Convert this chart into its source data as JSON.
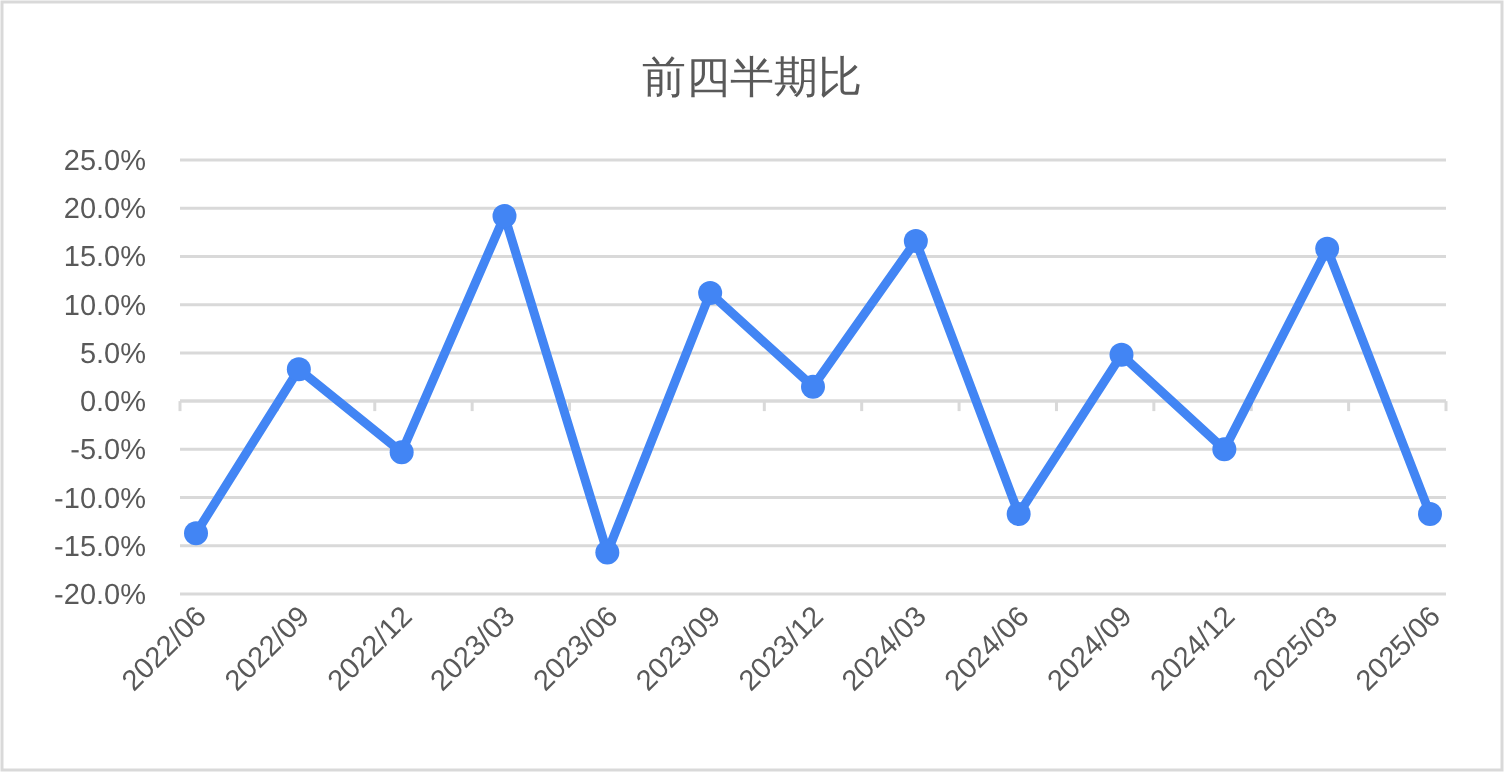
{
  "chart_data": {
    "type": "line",
    "title": "前四半期比",
    "categories": [
      "2022/06",
      "2022/09",
      "2022/12",
      "2023/03",
      "2023/06",
      "2023/09",
      "2023/12",
      "2024/03",
      "2024/06",
      "2024/09",
      "2024/12",
      "2025/03",
      "2025/06"
    ],
    "series": [
      {
        "color": "#4285f4",
        "values": [
          -13.7,
          3.3,
          -5.3,
          19.2,
          -15.7,
          11.2,
          1.5,
          16.6,
          -11.7,
          4.8,
          -5.0,
          15.8,
          -11.7
        ]
      }
    ],
    "ylim": [
      -20,
      25
    ],
    "yticks": [
      {
        "value": -20,
        "label": "-20.0%"
      },
      {
        "value": -15,
        "label": "-15.0%"
      },
      {
        "value": -10,
        "label": "-10.0%"
      },
      {
        "value": -5,
        "label": "-5.0%"
      },
      {
        "value": 0,
        "label": "0.0%"
      },
      {
        "value": 5,
        "label": "5.0%"
      },
      {
        "value": 10,
        "label": "10.0%"
      },
      {
        "value": 15,
        "label": "15.0%"
      },
      {
        "value": 20,
        "label": "20.0%"
      },
      {
        "value": 25,
        "label": "25.0%"
      }
    ],
    "grid": "y",
    "marker": "circle",
    "line_style": "solid"
  }
}
